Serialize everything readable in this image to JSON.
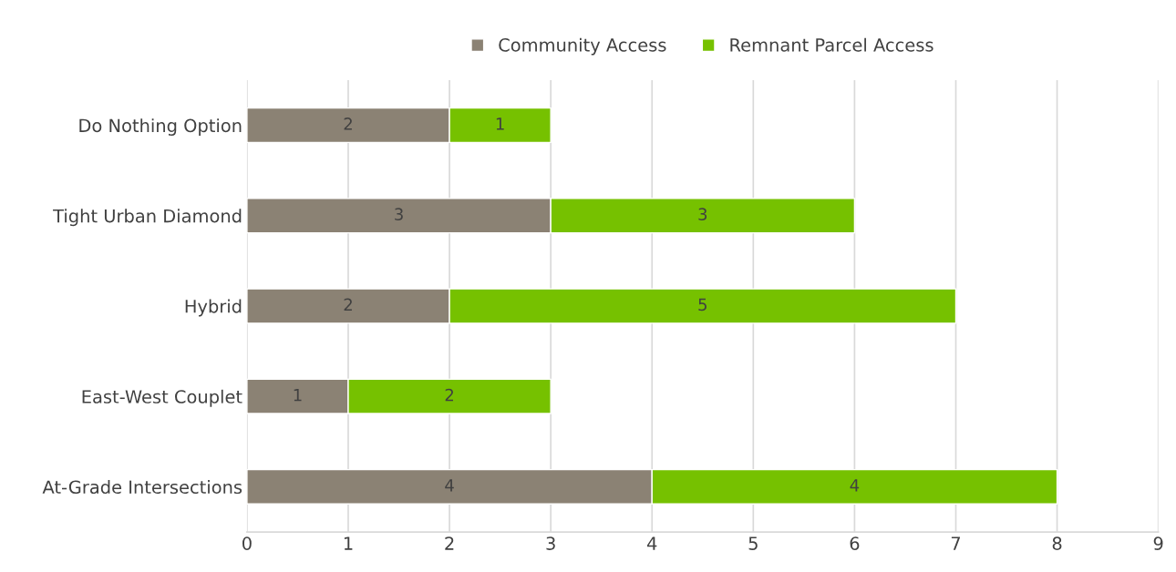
{
  "chart_data": {
    "type": "bar",
    "orientation": "horizontal",
    "stacked": true,
    "categories": [
      "Do Nothing Option",
      "Tight Urban Diamond",
      "Hybrid",
      "East-West Couplet",
      "At-Grade Intersections"
    ],
    "series": [
      {
        "name": "Community Access",
        "color": "#8b8274",
        "values": [
          2,
          3,
          2,
          1,
          4
        ]
      },
      {
        "name": "Remnant Parcel Access",
        "color": "#76c100",
        "values": [
          1,
          3,
          5,
          2,
          4
        ]
      }
    ],
    "xlim": [
      0,
      9
    ],
    "xticks": [
      0,
      1,
      2,
      3,
      4,
      5,
      6,
      7,
      8,
      9
    ],
    "grid": "x",
    "legend": "top",
    "data_labels": true
  }
}
